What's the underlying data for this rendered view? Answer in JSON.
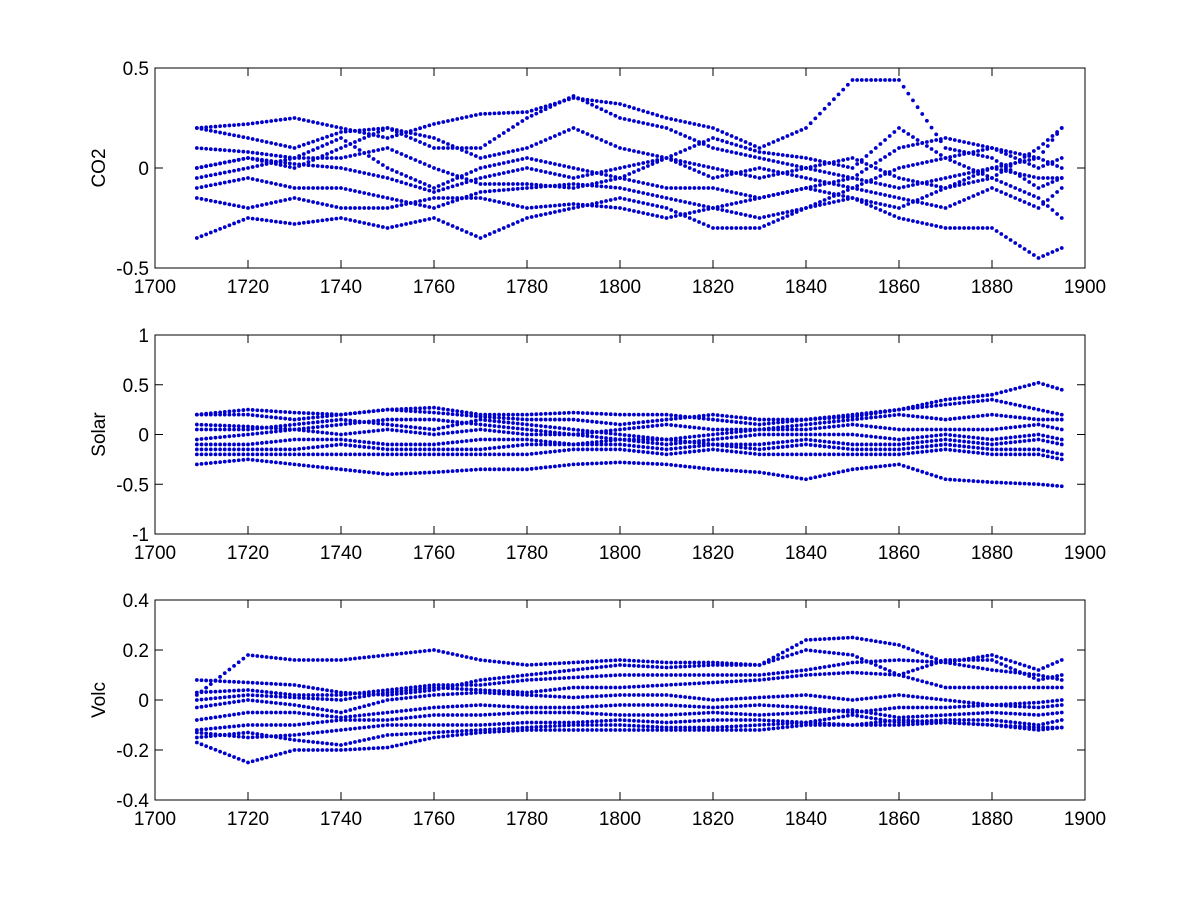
{
  "figure": {
    "background": "#ffffff",
    "marker_color": "#0000cc",
    "axis_color": "#000000"
  },
  "chart_data": [
    {
      "type": "scatter",
      "title": "",
      "xlabel": "",
      "ylabel": "CO2",
      "xlim": [
        1700,
        1900
      ],
      "ylim": [
        -0.5,
        0.5
      ],
      "xticks": [
        "1700",
        "1720",
        "1740",
        "1760",
        "1780",
        "1800",
        "1820",
        "1840",
        "1860",
        "1880",
        "1900"
      ],
      "yticks": [
        "-0.5",
        "0",
        "0.5"
      ],
      "grid": false,
      "color": "#0000cc",
      "x": [
        1709,
        1720,
        1730,
        1740,
        1750,
        1760,
        1770,
        1780,
        1790,
        1800,
        1810,
        1820,
        1830,
        1840,
        1850,
        1860,
        1870,
        1880,
        1890,
        1895
      ],
      "series": [
        {
          "values": [
            0.2,
            0.22,
            0.25,
            0.2,
            0.15,
            0.22,
            0.27,
            0.28,
            0.35,
            0.32,
            0.25,
            0.2,
            0.1,
            0.2,
            0.44,
            0.44,
            0.1,
            0.05,
            -0.1,
            -0.05
          ]
        },
        {
          "values": [
            0.2,
            0.15,
            0.1,
            0.18,
            0.2,
            0.1,
            0.1,
            0.25,
            0.36,
            0.25,
            0.2,
            0.1,
            0.05,
            0.0,
            -0.05,
            0.1,
            0.15,
            0.1,
            0.05,
            0.2
          ]
        },
        {
          "values": [
            0.0,
            0.05,
            0.0,
            0.1,
            0.2,
            0.15,
            0.05,
            0.1,
            0.2,
            0.1,
            0.05,
            0.15,
            0.08,
            0.05,
            0.0,
            0.2,
            0.05,
            -0.05,
            0.1,
            0.2
          ]
        },
        {
          "values": [
            0.1,
            0.08,
            0.05,
            0.15,
            0.0,
            -0.1,
            0.0,
            0.05,
            0.0,
            -0.05,
            0.05,
            0.0,
            -0.05,
            0.0,
            0.05,
            -0.05,
            -0.1,
            0.0,
            0.05,
            0.0
          ]
        },
        {
          "values": [
            0.0,
            0.05,
            0.02,
            0.0,
            -0.05,
            -0.12,
            -0.05,
            0.0,
            -0.05,
            0.0,
            0.05,
            -0.05,
            0.0,
            -0.05,
            -0.1,
            0.0,
            0.05,
            0.1,
            0.0,
            0.05
          ]
        },
        {
          "values": [
            -0.05,
            0.0,
            0.05,
            0.05,
            0.1,
            0.0,
            -0.08,
            -0.08,
            -0.1,
            -0.05,
            -0.1,
            -0.1,
            -0.15,
            -0.1,
            -0.05,
            -0.1,
            -0.05,
            0.0,
            -0.05,
            -0.05
          ]
        },
        {
          "values": [
            -0.1,
            -0.05,
            -0.1,
            -0.1,
            -0.15,
            -0.2,
            -0.12,
            -0.1,
            -0.08,
            -0.1,
            -0.15,
            -0.2,
            -0.15,
            -0.1,
            -0.15,
            -0.2,
            -0.1,
            -0.05,
            -0.15,
            -0.25
          ]
        },
        {
          "values": [
            -0.15,
            -0.2,
            -0.15,
            -0.2,
            -0.2,
            -0.15,
            -0.15,
            -0.2,
            -0.18,
            -0.2,
            -0.25,
            -0.2,
            -0.25,
            -0.2,
            -0.1,
            -0.15,
            -0.2,
            -0.1,
            -0.2,
            -0.1
          ]
        },
        {
          "values": [
            -0.35,
            -0.25,
            -0.28,
            -0.25,
            -0.3,
            -0.25,
            -0.35,
            -0.25,
            -0.2,
            -0.15,
            -0.2,
            -0.3,
            -0.3,
            -0.2,
            -0.15,
            -0.25,
            -0.3,
            -0.3,
            -0.45,
            -0.4
          ]
        }
      ]
    },
    {
      "type": "scatter",
      "title": "",
      "xlabel": "",
      "ylabel": "Solar",
      "xlim": [
        1700,
        1900
      ],
      "ylim": [
        -1,
        1
      ],
      "xticks": [
        "1700",
        "1720",
        "1740",
        "1760",
        "1780",
        "1800",
        "1820",
        "1840",
        "1860",
        "1880",
        "1900"
      ],
      "yticks": [
        "-1",
        "-0.5",
        "0",
        "0.5",
        "1"
      ],
      "grid": false,
      "color": "#0000cc",
      "x": [
        1709,
        1720,
        1730,
        1740,
        1750,
        1760,
        1770,
        1780,
        1790,
        1800,
        1810,
        1820,
        1830,
        1840,
        1850,
        1860,
        1870,
        1880,
        1890,
        1895
      ],
      "series": [
        {
          "values": [
            0.2,
            0.25,
            0.22,
            0.2,
            0.25,
            0.27,
            0.2,
            0.2,
            0.22,
            0.2,
            0.2,
            0.15,
            0.1,
            0.15,
            0.2,
            0.25,
            0.35,
            0.4,
            0.52,
            0.45
          ]
        },
        {
          "values": [
            0.2,
            0.2,
            0.15,
            0.2,
            0.25,
            0.22,
            0.18,
            0.15,
            0.15,
            0.1,
            0.15,
            0.2,
            0.15,
            0.15,
            0.18,
            0.25,
            0.3,
            0.35,
            0.25,
            0.2
          ]
        },
        {
          "values": [
            0.1,
            0.08,
            0.05,
            0.1,
            0.15,
            0.15,
            0.1,
            0.05,
            0.0,
            0.05,
            0.1,
            0.05,
            0.05,
            0.1,
            0.15,
            0.2,
            0.15,
            0.2,
            0.15,
            0.15
          ]
        },
        {
          "values": [
            0.05,
            0.05,
            0.1,
            0.15,
            0.1,
            0.05,
            0.15,
            0.1,
            0.05,
            0.0,
            -0.05,
            0.0,
            0.05,
            0.05,
            0.1,
            0.05,
            0.05,
            0.05,
            0.1,
            0.05
          ]
        },
        {
          "values": [
            -0.05,
            0.0,
            0.05,
            0.0,
            0.05,
            0.0,
            0.05,
            0.0,
            0.0,
            -0.05,
            -0.1,
            -0.05,
            0.0,
            0.0,
            0.0,
            -0.05,
            0.0,
            -0.05,
            0.0,
            -0.05
          ]
        },
        {
          "values": [
            -0.1,
            -0.1,
            -0.05,
            -0.05,
            -0.1,
            -0.1,
            -0.05,
            -0.05,
            -0.1,
            -0.05,
            -0.05,
            -0.1,
            -0.1,
            -0.05,
            -0.1,
            -0.1,
            -0.05,
            -0.1,
            -0.05,
            -0.1
          ]
        },
        {
          "values": [
            -0.15,
            -0.15,
            -0.15,
            -0.1,
            -0.15,
            -0.15,
            -0.15,
            -0.1,
            -0.1,
            -0.1,
            -0.15,
            -0.1,
            -0.15,
            -0.1,
            -0.15,
            -0.15,
            -0.1,
            -0.15,
            -0.15,
            -0.2
          ]
        },
        {
          "values": [
            -0.2,
            -0.2,
            -0.2,
            -0.2,
            -0.2,
            -0.2,
            -0.2,
            -0.2,
            -0.15,
            -0.15,
            -0.2,
            -0.15,
            -0.2,
            -0.2,
            -0.2,
            -0.2,
            -0.15,
            -0.2,
            -0.2,
            -0.25
          ]
        },
        {
          "values": [
            -0.3,
            -0.25,
            -0.3,
            -0.35,
            -0.4,
            -0.38,
            -0.35,
            -0.35,
            -0.3,
            -0.28,
            -0.3,
            -0.35,
            -0.38,
            -0.45,
            -0.35,
            -0.3,
            -0.45,
            -0.48,
            -0.5,
            -0.52
          ]
        }
      ]
    },
    {
      "type": "scatter",
      "title": "",
      "xlabel": "",
      "ylabel": "Volc",
      "xlim": [
        1700,
        1900
      ],
      "ylim": [
        -0.4,
        0.4
      ],
      "xticks": [
        "1700",
        "1720",
        "1740",
        "1760",
        "1780",
        "1800",
        "1820",
        "1840",
        "1860",
        "1880",
        "1900"
      ],
      "yticks": [
        "-0.4",
        "-0.2",
        "0",
        "0.2",
        "0.4"
      ],
      "grid": false,
      "color": "#0000cc",
      "x": [
        1709,
        1720,
        1730,
        1740,
        1750,
        1760,
        1770,
        1780,
        1790,
        1800,
        1810,
        1820,
        1830,
        1840,
        1850,
        1860,
        1870,
        1880,
        1890,
        1895
      ],
      "series": [
        {
          "values": [
            0.02,
            0.18,
            0.16,
            0.16,
            0.18,
            0.2,
            0.16,
            0.14,
            0.15,
            0.16,
            0.15,
            0.15,
            0.14,
            0.24,
            0.25,
            0.22,
            0.15,
            0.18,
            0.12,
            0.16
          ]
        },
        {
          "values": [
            0.08,
            0.07,
            0.06,
            0.03,
            0.02,
            0.04,
            0.08,
            0.1,
            0.12,
            0.14,
            0.13,
            0.14,
            0.14,
            0.2,
            0.18,
            0.1,
            0.16,
            0.16,
            0.08,
            0.1
          ]
        },
        {
          "values": [
            0.03,
            0.04,
            0.02,
            0.02,
            0.04,
            0.06,
            0.06,
            0.08,
            0.09,
            0.1,
            0.1,
            0.1,
            0.1,
            0.12,
            0.15,
            0.16,
            0.15,
            0.12,
            0.1,
            0.08
          ]
        },
        {
          "values": [
            0.0,
            0.02,
            0.01,
            0.0,
            0.03,
            0.05,
            0.04,
            0.03,
            0.05,
            0.05,
            0.06,
            0.07,
            0.08,
            0.1,
            0.11,
            0.1,
            0.05,
            0.05,
            0.05,
            0.05
          ]
        },
        {
          "values": [
            -0.03,
            0.0,
            -0.02,
            -0.05,
            0.0,
            0.02,
            0.03,
            0.02,
            0.01,
            0.02,
            0.02,
            0.0,
            0.01,
            0.02,
            0.0,
            0.02,
            0.0,
            -0.02,
            -0.01,
            0.0
          ]
        },
        {
          "values": [
            -0.08,
            -0.05,
            -0.05,
            -0.07,
            -0.05,
            -0.03,
            -0.02,
            -0.03,
            -0.03,
            -0.02,
            -0.02,
            -0.03,
            -0.02,
            -0.03,
            -0.05,
            -0.03,
            -0.03,
            -0.02,
            -0.03,
            -0.02
          ]
        },
        {
          "values": [
            -0.12,
            -0.1,
            -0.1,
            -0.08,
            -0.08,
            -0.06,
            -0.06,
            -0.05,
            -0.05,
            -0.06,
            -0.06,
            -0.05,
            -0.06,
            -0.05,
            -0.04,
            -0.07,
            -0.06,
            -0.05,
            -0.06,
            -0.05
          ]
        },
        {
          "values": [
            -0.13,
            -0.15,
            -0.14,
            -0.12,
            -0.1,
            -0.1,
            -0.1,
            -0.09,
            -0.09,
            -0.08,
            -0.09,
            -0.08,
            -0.08,
            -0.09,
            -0.06,
            -0.09,
            -0.08,
            -0.08,
            -0.1,
            -0.08
          ]
        },
        {
          "values": [
            -0.15,
            -0.13,
            -0.16,
            -0.18,
            -0.14,
            -0.13,
            -0.12,
            -0.11,
            -0.1,
            -0.1,
            -0.11,
            -0.11,
            -0.1,
            -0.09,
            -0.1,
            -0.08,
            -0.09,
            -0.1,
            -0.11,
            -0.11
          ]
        },
        {
          "values": [
            -0.17,
            -0.25,
            -0.2,
            -0.2,
            -0.19,
            -0.15,
            -0.13,
            -0.12,
            -0.12,
            -0.12,
            -0.12,
            -0.12,
            -0.12,
            -0.1,
            -0.1,
            -0.1,
            -0.09,
            -0.1,
            -0.12,
            -0.11
          ]
        }
      ]
    }
  ]
}
